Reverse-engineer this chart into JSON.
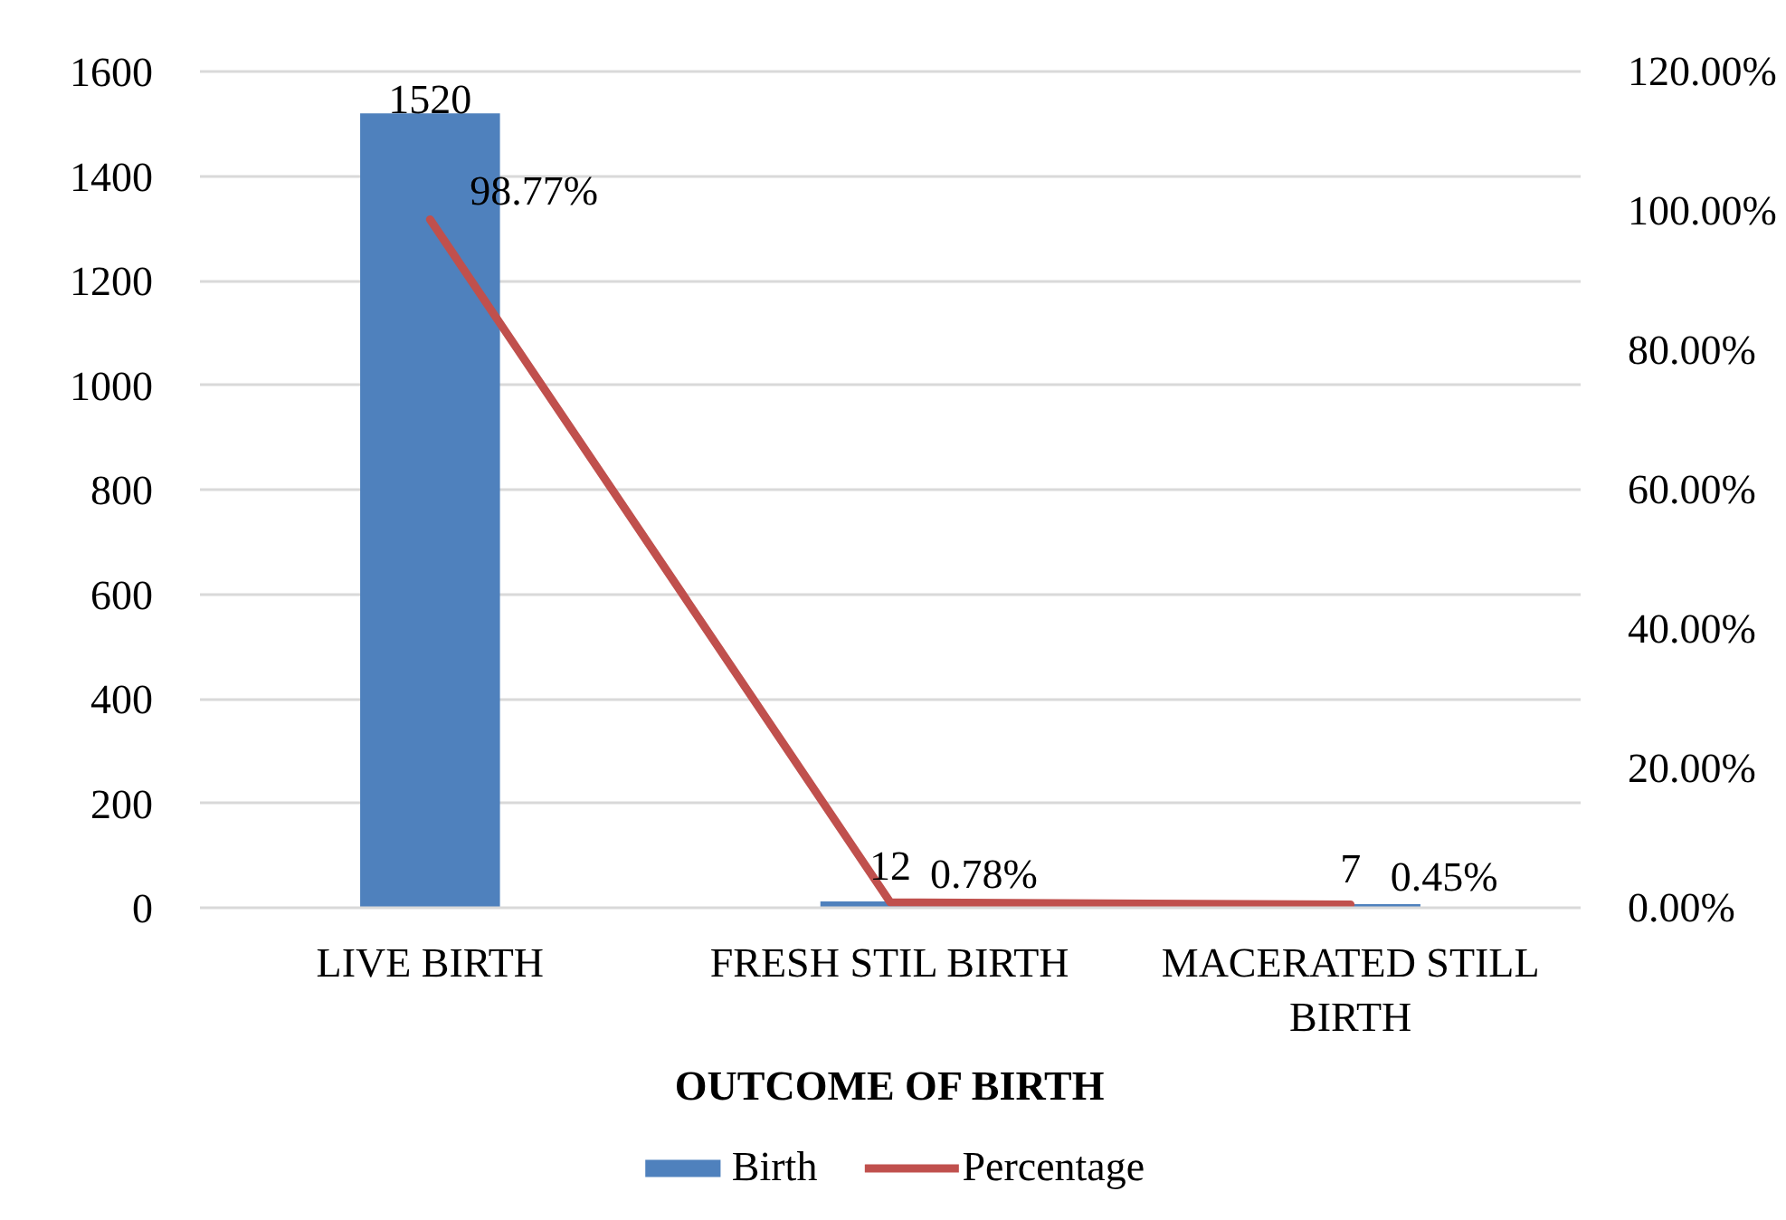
{
  "chart_data": {
    "type": "bar",
    "xlabel": "OUTCOME OF BIRTH",
    "categories": [
      "LIVE BIRTH",
      "FRESH STIL BIRTH",
      "MACERATED STILL BIRTH"
    ],
    "series": [
      {
        "name": "Birth",
        "color": "#4f81bd",
        "values": [
          1520,
          12,
          7
        ],
        "value_labels": [
          "1520",
          "12",
          "7"
        ]
      },
      {
        "name": "Percentage",
        "type": "line",
        "axis": "y2",
        "color": "#c0504d",
        "values": [
          98.77,
          0.78,
          0.45
        ],
        "value_labels": [
          "98.77%",
          "0.78%",
          "0.45%"
        ]
      }
    ],
    "ylim": [
      0,
      1600
    ],
    "yticks": [
      0,
      200,
      400,
      600,
      800,
      1000,
      1200,
      1400,
      1600
    ],
    "y2lim": [
      0,
      120
    ],
    "y2ticks": [
      {
        "value": 0,
        "label": "0.00%"
      },
      {
        "value": 20,
        "label": "20.00%"
      },
      {
        "value": 40,
        "label": "40.00%"
      },
      {
        "value": 60,
        "label": "60.00%"
      },
      {
        "value": 80,
        "label": "80.00%"
      },
      {
        "value": 100,
        "label": "100.00%"
      },
      {
        "value": 120,
        "label": "120.00%"
      }
    ],
    "grid": "y",
    "legend": "bottom"
  }
}
